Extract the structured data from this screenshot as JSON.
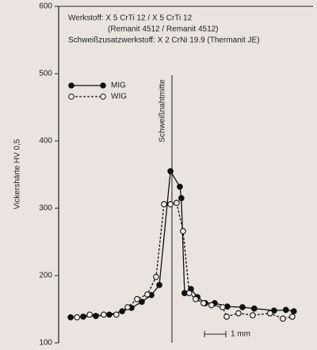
{
  "chart_data": {
    "type": "line",
    "annotations": [
      "Werkstoff: X 5 CrTi 12 / X 5 CrTi 12",
      "(Remanit 4512 / Remanit 4512)",
      "Schweißzusatzwerkstoff: X 2 CrNi 19.9 (Thermanit JE)"
    ],
    "y_label": "Vickershärte HV 0,5",
    "ylim": [
      100,
      600
    ],
    "yticks": [
      100,
      200,
      300,
      400,
      500,
      600
    ],
    "xlim": [
      -5.3,
      6.6
    ],
    "center_line": {
      "x": 0,
      "label": "Schweißnahtmitte"
    },
    "scale_bar": {
      "length": 1,
      "label": "1 mm"
    },
    "series": [
      {
        "name": "MIG",
        "color": "#111111",
        "marker": "filled",
        "line_style": "solid",
        "x": [
          -4.74,
          -4.15,
          -3.56,
          -2.93,
          -2.33,
          -1.89,
          -1.41,
          -0.96,
          -0.59,
          -0.07,
          0.37,
          0.44,
          0.59,
          0.89,
          1.19,
          1.56,
          2.0,
          2.59,
          3.3,
          3.85,
          4.78,
          5.33,
          5.7
        ],
        "values": [
          138,
          139,
          140,
          142,
          147,
          152,
          161,
          171,
          186,
          355,
          332,
          315,
          174,
          180,
          168,
          159,
          159,
          154,
          153,
          151,
          148,
          149,
          147
        ]
      },
      {
        "name": "WIG",
        "color": "#111111",
        "marker": "open",
        "line_style": "dashed",
        "x": [
          -4.44,
          -3.85,
          -3.19,
          -2.6,
          -2.07,
          -1.63,
          -1.15,
          -0.74,
          -0.37,
          -0.07,
          0.22,
          0.52,
          0.81,
          1.11,
          1.48,
          1.85,
          2.37,
          2.56,
          3.11,
          3.78,
          4.59,
          5.19,
          5.63
        ],
        "values": [
          138,
          142,
          142,
          142,
          153,
          165,
          172,
          198,
          306,
          306,
          308,
          266,
          174,
          165,
          159,
          156,
          153,
          139,
          144,
          141,
          144,
          136,
          139
        ]
      }
    ]
  }
}
